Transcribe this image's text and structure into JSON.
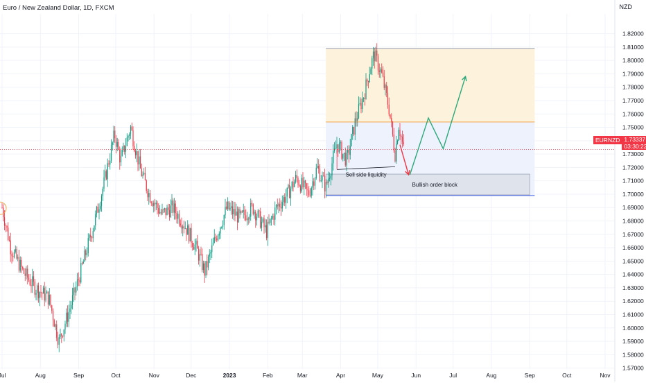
{
  "header": {
    "title": "Euro / New Zealand Dollar, 1D, FXCM"
  },
  "chart_data": {
    "type": "candlestick",
    "symbol": "EURNZD",
    "interval": "1D",
    "source": "FXCM",
    "y_unit": "NZD",
    "ylim": [
      1.565,
      1.823
    ],
    "y_ticks": [
      "1.82000",
      "1.81000",
      "1.80000",
      "1.79000",
      "1.78000",
      "1.77000",
      "1.76000",
      "1.75000",
      "1.74000",
      "1.73000",
      "1.72000",
      "1.71000",
      "1.70000",
      "1.69000",
      "1.68000",
      "1.67000",
      "1.66000",
      "1.65000",
      "1.64000",
      "1.63000",
      "1.62000",
      "1.61000",
      "1.60000",
      "1.59000",
      "1.58000",
      "1.57000"
    ],
    "x_ticks": [
      "Jul",
      "Aug",
      "Sep",
      "Oct",
      "Nov",
      "Dec",
      "2023",
      "Feb",
      "Mar",
      "Apr",
      "May",
      "Jun",
      "Jul",
      "Aug",
      "Sep",
      "Oct",
      "Nov"
    ],
    "last_price": "1.73337",
    "countdown": "03:30:22",
    "up_color": "#089981",
    "down_color": "#f23645",
    "price_path": [
      {
        "date": "2022-07-01",
        "price": 1.69
      },
      {
        "date": "2022-07-08",
        "price": 1.66
      },
      {
        "date": "2022-07-18",
        "price": 1.642
      },
      {
        "date": "2022-07-28",
        "price": 1.63
      },
      {
        "date": "2022-08-08",
        "price": 1.622
      },
      {
        "date": "2022-08-16",
        "price": 1.59
      },
      {
        "date": "2022-08-24",
        "price": 1.612
      },
      {
        "date": "2022-09-02",
        "price": 1.64
      },
      {
        "date": "2022-09-14",
        "price": 1.68
      },
      {
        "date": "2022-09-22",
        "price": 1.71
      },
      {
        "date": "2022-09-30",
        "price": 1.745
      },
      {
        "date": "2022-10-05",
        "price": 1.725
      },
      {
        "date": "2022-10-13",
        "price": 1.75
      },
      {
        "date": "2022-10-21",
        "price": 1.718
      },
      {
        "date": "2022-10-28",
        "price": 1.7
      },
      {
        "date": "2022-11-07",
        "price": 1.685
      },
      {
        "date": "2022-11-16",
        "price": 1.69
      },
      {
        "date": "2022-11-25",
        "price": 1.678
      },
      {
        "date": "2022-12-05",
        "price": 1.66
      },
      {
        "date": "2022-12-12",
        "price": 1.642
      },
      {
        "date": "2022-12-21",
        "price": 1.668
      },
      {
        "date": "2022-12-30",
        "price": 1.69
      },
      {
        "date": "2023-01-10",
        "price": 1.682
      },
      {
        "date": "2023-01-20",
        "price": 1.69
      },
      {
        "date": "2023-01-31",
        "price": 1.672
      },
      {
        "date": "2023-02-08",
        "price": 1.69
      },
      {
        "date": "2023-02-17",
        "price": 1.7
      },
      {
        "date": "2023-02-24",
        "price": 1.712
      },
      {
        "date": "2023-03-06",
        "price": 1.7
      },
      {
        "date": "2023-03-13",
        "price": 1.72
      },
      {
        "date": "2023-03-20",
        "price": 1.705
      },
      {
        "date": "2023-03-29",
        "price": 1.738
      },
      {
        "date": "2023-04-06",
        "price": 1.725
      },
      {
        "date": "2023-04-13",
        "price": 1.755
      },
      {
        "date": "2023-04-20",
        "price": 1.775
      },
      {
        "date": "2023-04-25",
        "price": 1.795
      },
      {
        "date": "2023-04-28",
        "price": 1.805
      },
      {
        "date": "2023-05-04",
        "price": 1.79
      },
      {
        "date": "2023-05-10",
        "price": 1.765
      },
      {
        "date": "2023-05-15",
        "price": 1.73
      },
      {
        "date": "2023-05-18",
        "price": 1.752
      },
      {
        "date": "2023-05-22",
        "price": 1.733
      }
    ],
    "annotations": [
      {
        "type": "zone",
        "label": "",
        "y_range": [
          1.754,
          1.809
        ],
        "x_range": [
          "2023-03-20",
          "2023-09-05"
        ],
        "color": "#fdf2dc"
      },
      {
        "type": "zone",
        "label": "",
        "y_range": [
          1.699,
          1.754
        ],
        "x_range": [
          "2023-03-20",
          "2023-09-05"
        ],
        "color": "#edf2fc"
      },
      {
        "type": "zone",
        "label": "Bullish order block",
        "y_range": [
          1.6995,
          1.715
        ],
        "x_range": [
          "2023-03-20",
          "2023-09-01"
        ],
        "color": "#dfe3ec"
      },
      {
        "type": "liquidity",
        "label": "Sell side liquidity",
        "y": 1.7195,
        "x_range": [
          "2023-03-29",
          "2023-05-15"
        ]
      },
      {
        "type": "path",
        "color": "#f23645",
        "points": [
          {
            "date": "2023-05-19",
            "price": 1.737
          },
          {
            "date": "2023-05-26",
            "price": 1.7145
          }
        ]
      },
      {
        "type": "path",
        "color": "#2aa87a",
        "points": [
          {
            "date": "2023-05-27",
            "price": 1.7145
          },
          {
            "date": "2023-06-11",
            "price": 1.757
          },
          {
            "date": "2023-06-23",
            "price": 1.734
          },
          {
            "date": "2023-07-11",
            "price": 1.788
          }
        ]
      }
    ]
  }
}
